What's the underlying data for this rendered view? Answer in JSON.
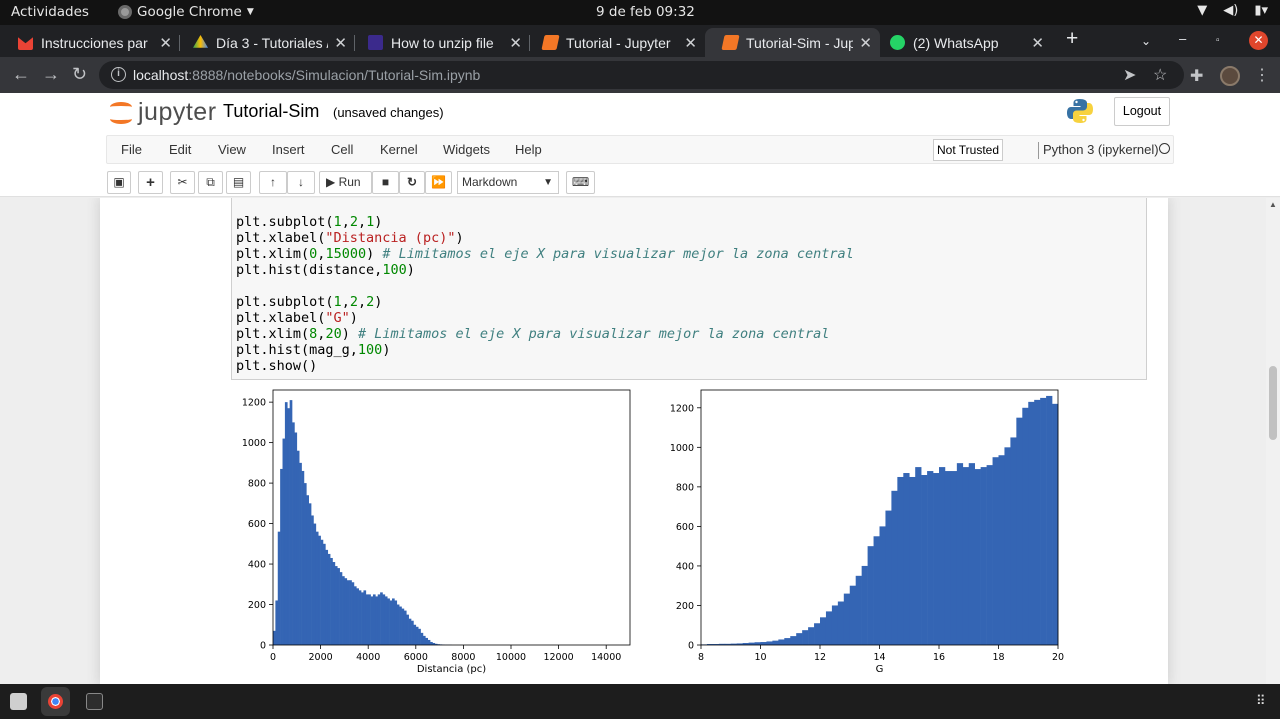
{
  "system": {
    "activities": "Actividades",
    "app_menu": "Google Chrome",
    "clock": "9 de feb  09:32"
  },
  "tabs": [
    {
      "title": "Instrucciones par",
      "color": "#ea4335"
    },
    {
      "title": "Día 3 - Tutoriales /",
      "color": "#34a853"
    },
    {
      "title": "How to unzip file",
      "color": "#5f3dc4"
    },
    {
      "title": "Tutorial - Jupyter",
      "color": "#f37726"
    },
    {
      "title": "Tutorial-Sim - Jup",
      "color": "#f37726"
    },
    {
      "title": "(2) WhatsApp",
      "color": "#25d366"
    }
  ],
  "address": {
    "host": "localhost",
    "path": ":8888/notebooks/Simulacion/Tutorial-Sim.ipynb"
  },
  "jupyter": {
    "logo": "jupyter",
    "notebook_name": "Tutorial-Sim",
    "save_status": "(unsaved changes)",
    "logout": "Logout",
    "menu": [
      "File",
      "Edit",
      "View",
      "Insert",
      "Cell",
      "Kernel",
      "Widgets",
      "Help"
    ],
    "trust": "Not Trusted",
    "kernel": "Python 3 (ipykernel)",
    "run_label": "Run",
    "cell_type": "Markdown"
  },
  "code_lines": [
    [
      {
        "t": "plt.subplot("
      },
      {
        "t": "1",
        "k": "n"
      },
      {
        "t": ","
      },
      {
        "t": "2",
        "k": "n"
      },
      {
        "t": ","
      },
      {
        "t": "1",
        "k": "n"
      },
      {
        "t": ")"
      }
    ],
    [
      {
        "t": "plt.xlabel("
      },
      {
        "t": "\"Distancia (pc)\"",
        "k": "s"
      },
      {
        "t": ")"
      }
    ],
    [
      {
        "t": "plt.xlim("
      },
      {
        "t": "0",
        "k": "n"
      },
      {
        "t": ","
      },
      {
        "t": "15000",
        "k": "n"
      },
      {
        "t": ") "
      },
      {
        "t": "# Limitamos el eje X para visualizar mejor la zona central",
        "k": "c"
      }
    ],
    [
      {
        "t": "plt.hist(distance,"
      },
      {
        "t": "100",
        "k": "n"
      },
      {
        "t": ")"
      }
    ],
    [
      {
        "t": ""
      }
    ],
    [
      {
        "t": "plt.subplot("
      },
      {
        "t": "1",
        "k": "n"
      },
      {
        "t": ","
      },
      {
        "t": "2",
        "k": "n"
      },
      {
        "t": ","
      },
      {
        "t": "2",
        "k": "n"
      },
      {
        "t": ")"
      }
    ],
    [
      {
        "t": "plt.xlabel("
      },
      {
        "t": "\"G\"",
        "k": "s"
      },
      {
        "t": ")"
      }
    ],
    [
      {
        "t": "plt.xlim("
      },
      {
        "t": "8",
        "k": "n"
      },
      {
        "t": ","
      },
      {
        "t": "20",
        "k": "n"
      },
      {
        "t": ") "
      },
      {
        "t": "# Limitamos el eje X para visualizar mejor la zona central",
        "k": "c"
      }
    ],
    [
      {
        "t": "plt.hist(mag_g,"
      },
      {
        "t": "100",
        "k": "n"
      },
      {
        "t": ")"
      }
    ],
    [
      {
        "t": "plt.show()"
      }
    ]
  ],
  "chart_data": [
    {
      "type": "bar",
      "xlabel": "Distancia (pc)",
      "ylabel": "",
      "xlim": [
        0,
        15000
      ],
      "ylim": [
        0,
        1260
      ],
      "xticks": [
        0,
        2000,
        4000,
        6000,
        8000,
        10000,
        12000,
        14000
      ],
      "yticks": [
        0,
        200,
        400,
        600,
        800,
        1000,
        1200
      ],
      "bar_color": "#3465b4",
      "bin_start": 0,
      "bin_width": 100,
      "values": [
        70,
        220,
        560,
        870,
        1020,
        1200,
        1170,
        1210,
        1100,
        1050,
        960,
        900,
        860,
        800,
        740,
        700,
        640,
        600,
        560,
        540,
        520,
        500,
        470,
        450,
        430,
        410,
        390,
        380,
        360,
        340,
        330,
        320,
        320,
        310,
        290,
        280,
        270,
        260,
        270,
        250,
        250,
        240,
        250,
        240,
        250,
        260,
        250,
        240,
        230,
        220,
        230,
        220,
        200,
        190,
        180,
        170,
        150,
        130,
        120,
        100,
        90,
        80,
        60,
        45,
        35,
        25,
        15,
        10,
        6,
        4,
        3,
        2,
        1,
        1,
        1,
        0,
        0,
        0,
        0,
        0
      ]
    },
    {
      "type": "bar",
      "xlabel": "G",
      "ylabel": "",
      "xlim": [
        8,
        20
      ],
      "ylim": [
        0,
        1290
      ],
      "xticks": [
        8,
        10,
        12,
        14,
        16,
        18,
        20
      ],
      "yticks": [
        0,
        200,
        400,
        600,
        800,
        1000,
        1200
      ],
      "bar_color": "#3465b4",
      "bin_start": 8.0,
      "bin_width": 0.2,
      "values": [
        3,
        5,
        5,
        6,
        6,
        7,
        8,
        10,
        12,
        14,
        15,
        18,
        22,
        28,
        35,
        45,
        60,
        75,
        90,
        110,
        140,
        170,
        200,
        220,
        260,
        300,
        350,
        400,
        500,
        550,
        600,
        680,
        780,
        850,
        870,
        850,
        900,
        860,
        880,
        870,
        900,
        880,
        880,
        920,
        900,
        920,
        890,
        900,
        910,
        950,
        960,
        1000,
        1050,
        1150,
        1200,
        1230,
        1240,
        1250,
        1260,
        1220
      ]
    }
  ]
}
